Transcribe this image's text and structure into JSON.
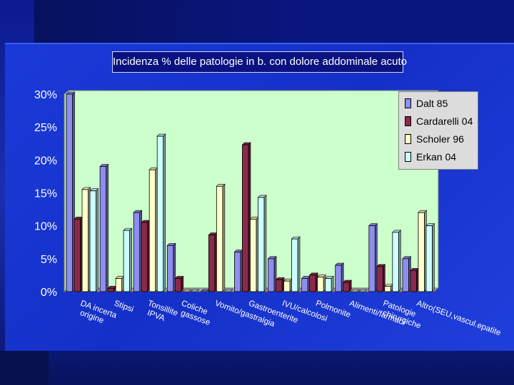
{
  "slide": {
    "background": "#0b1a8c"
  },
  "chart_data": {
    "type": "bar",
    "title": "Incidenza % delle patologie in b. con dolore addominale acuto",
    "xlabel": "",
    "ylabel": "",
    "ylim": [
      0,
      30
    ],
    "yticks": [
      "0%",
      "5%",
      "10%",
      "15%",
      "20%",
      "25%",
      "30%"
    ],
    "ytick_values": [
      0,
      5,
      10,
      15,
      20,
      25,
      30
    ],
    "grid": false,
    "legend_position": "top-right",
    "categories": [
      "DA incerta origine",
      "Stipsi",
      "Tonsillite IPVA",
      "Coliche gassose",
      "Vomito/gastralgia",
      "Gastroenterite",
      "IVU/calcolosi",
      "Polmonite",
      "Alimenti/farmaci",
      "Patologie chirurgiche",
      "Altro(SEU,vascul.epatite"
    ],
    "series": [
      {
        "name": "Dalt 85",
        "color": "#8e8ef0",
        "values": [
          30,
          19,
          12,
          7,
          0,
          6,
          5,
          2,
          4,
          10,
          5
        ]
      },
      {
        "name": "Cardarelli 04",
        "color": "#8a2a4a",
        "values": [
          11,
          0.5,
          10.5,
          2,
          8.6,
          22.3,
          1.8,
          2.5,
          1.4,
          3.8,
          3.2
        ]
      },
      {
        "name": "Scholer 96",
        "color": "#ffffcc",
        "values": [
          15.5,
          2,
          18.5,
          0,
          16,
          11,
          1.6,
          2.2,
          0,
          0.8,
          12
        ]
      },
      {
        "name": "Erkan 04",
        "color": "#ccffff",
        "values": [
          15.3,
          9.3,
          23.6,
          0,
          0,
          14.3,
          8,
          2,
          0,
          9,
          10
        ]
      }
    ]
  },
  "colors": {
    "plot_bg": "#ccffcc",
    "axis_text": "#ffffff"
  }
}
